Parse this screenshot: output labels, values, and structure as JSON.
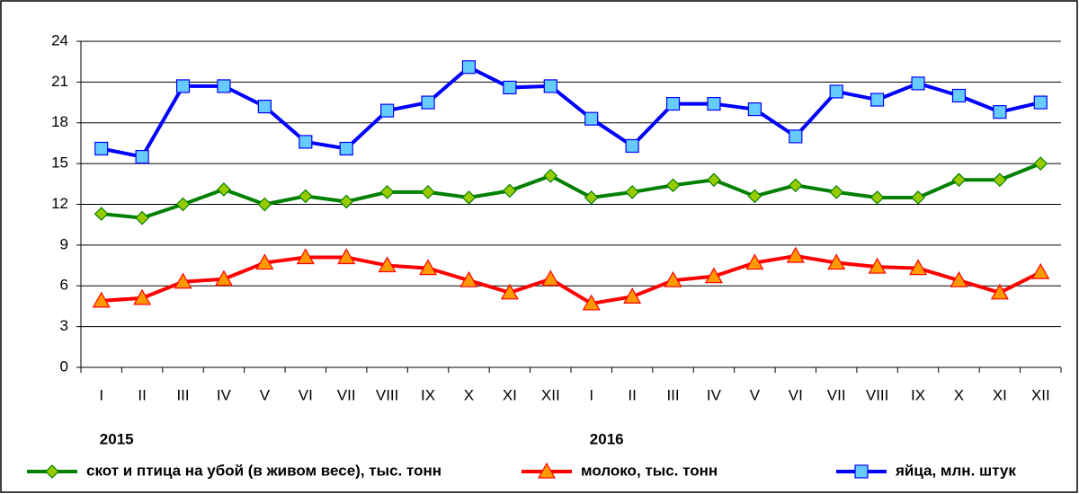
{
  "chart_data": {
    "type": "line",
    "categories": [
      "I",
      "II",
      "III",
      "IV",
      "V",
      "VI",
      "VII",
      "VIII",
      "IX",
      "X",
      "XI",
      "XII",
      "I",
      "II",
      "III",
      "IV",
      "V",
      "VI",
      "VII",
      "VIII",
      "IX",
      "X",
      "XI",
      "XII"
    ],
    "year_labels": [
      "2015",
      "2016"
    ],
    "ylim": [
      0,
      24
    ],
    "yticks": [
      0,
      3,
      6,
      9,
      12,
      15,
      18,
      21,
      24
    ],
    "grid": true,
    "series": [
      {
        "name": "скот и птица на убой (в живом весе), тыс. тонн",
        "color": "#008000",
        "marker": "diamond",
        "marker_color": "#99cc00",
        "values": [
          11.3,
          11.0,
          12.0,
          13.1,
          12.0,
          12.6,
          12.2,
          12.9,
          12.9,
          12.5,
          13.0,
          14.1,
          12.5,
          12.9,
          13.4,
          13.8,
          12.6,
          13.4,
          12.9,
          12.5,
          12.5,
          13.8,
          13.8,
          15.0
        ]
      },
      {
        "name": "молоко, тыс. тонн",
        "color": "#ff0000",
        "marker": "triangle",
        "marker_color": "#ff9900",
        "values": [
          4.9,
          5.1,
          6.3,
          6.5,
          7.7,
          8.1,
          8.1,
          7.5,
          7.3,
          6.4,
          5.5,
          6.5,
          4.7,
          5.2,
          6.4,
          6.7,
          7.7,
          8.2,
          7.7,
          7.4,
          7.3,
          6.4,
          5.5,
          7.0
        ]
      },
      {
        "name": "яйца, млн. штук",
        "color": "#0000ff",
        "marker": "square",
        "marker_color": "#66ccff",
        "values": [
          16.1,
          15.5,
          20.7,
          20.7,
          19.2,
          16.6,
          16.1,
          18.9,
          19.5,
          22.1,
          20.6,
          20.7,
          18.3,
          16.3,
          19.4,
          19.4,
          19.0,
          17.0,
          20.3,
          19.7,
          20.9,
          20.0,
          18.8,
          19.5
        ]
      }
    ]
  }
}
